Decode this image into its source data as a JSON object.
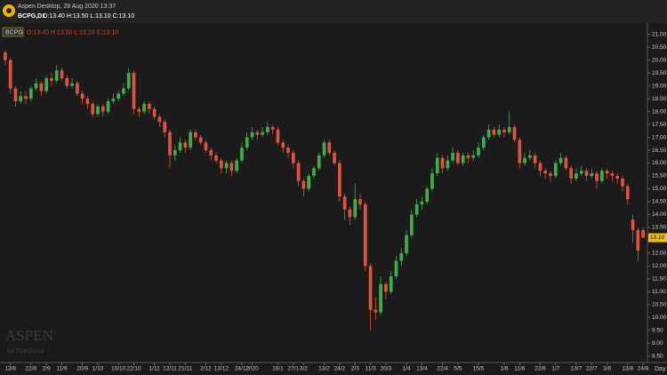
{
  "window": {
    "title": "Aspen Desktop, 28 Aug 2020 13:37",
    "symbol": "BCPG,D1",
    "ohlc_text": "O:13.40 H:13.50 L:13.10 C:13.10"
  },
  "chart_data": {
    "type": "candlestick",
    "symbol": "BCPG",
    "watermark": "ASPEN",
    "watermark_sub": "by ThaiQuest",
    "x_axis_label": "Day",
    "up_color": "#3fae49",
    "down_color": "#e0523c",
    "grid": false,
    "categories": [
      null,
      "13/8",
      null,
      null,
      null,
      "22/8",
      null,
      null,
      "2/9",
      null,
      null,
      "11/9",
      null,
      null,
      null,
      "20/9",
      null,
      null,
      "1/10",
      null,
      null,
      null,
      "10/10",
      null,
      null,
      "22/10",
      null,
      null,
      null,
      "1/11",
      null,
      null,
      "12/11",
      null,
      null,
      "21/11",
      null,
      null,
      null,
      "2/12",
      null,
      null,
      "13/12",
      null,
      null,
      null,
      "24/12",
      null,
      "2020",
      null,
      null,
      null,
      null,
      "16/1",
      null,
      null,
      "27/1",
      null,
      "3/2",
      null,
      null,
      null,
      "13/2",
      null,
      null,
      "24/2",
      null,
      null,
      "2/3",
      null,
      null,
      "11/3",
      null,
      null,
      "20/3",
      null,
      null,
      null,
      "1/4",
      null,
      null,
      "13/4",
      null,
      null,
      null,
      "22/4",
      null,
      null,
      "5/5",
      null,
      null,
      null,
      "15/5",
      null,
      null,
      null,
      null,
      "1/6",
      null,
      null,
      "11/6",
      null,
      null,
      null,
      "22/6",
      null,
      null,
      "1/7",
      null,
      null,
      null,
      "13/7",
      null,
      null,
      "22/7",
      null,
      null,
      "3/8",
      null,
      null,
      null,
      "13/8",
      null,
      null,
      "24/8"
    ],
    "open": [
      20.3,
      20.0,
      18.9,
      18.4,
      18.6,
      18.5,
      18.9,
      19.1,
      18.8,
      19.3,
      19.2,
      19.6,
      19.3,
      19.0,
      19.1,
      18.7,
      18.5,
      18.3,
      17.9,
      18.2,
      18.0,
      18.4,
      18.5,
      18.7,
      18.9,
      19.5,
      18.1,
      18.0,
      18.3,
      18.1,
      17.8,
      17.6,
      17.2,
      16.3,
      16.5,
      16.8,
      16.6,
      17.2,
      17.0,
      16.8,
      16.5,
      16.3,
      16.1,
      15.8,
      16.0,
      15.7,
      16.1,
      16.6,
      17.0,
      17.2,
      17.1,
      17.2,
      17.4,
      17.3,
      16.8,
      16.6,
      16.4,
      16.0,
      15.3,
      15.0,
      15.5,
      15.8,
      16.3,
      16.8,
      16.4,
      16.0,
      14.7,
      14.2,
      13.9,
      14.6,
      14.4,
      12.0,
      10.3,
      10.2,
      11.3,
      11.0,
      11.6,
      12.2,
      12.5,
      13.2,
      14.0,
      14.4,
      14.5,
      15.0,
      15.6,
      16.2,
      15.8,
      16.1,
      16.4,
      16.0,
      16.3,
      16.2,
      16.3,
      16.6,
      17.0,
      17.3,
      17.1,
      17.3,
      17.2,
      17.4,
      16.9,
      16.0,
      16.2,
      16.3,
      16.0,
      15.7,
      15.6,
      15.5,
      16.0,
      16.2,
      15.8,
      15.4,
      15.6,
      15.7,
      15.5,
      15.6,
      15.3,
      15.7,
      15.6,
      15.5,
      15.4,
      15.1,
      13.8,
      13.4,
      13.4
    ],
    "high": [
      20.4,
      20.1,
      19.0,
      18.8,
      18.8,
      19.0,
      19.3,
      19.2,
      19.4,
      19.5,
      19.8,
      19.7,
      19.4,
      19.3,
      19.2,
      18.8,
      18.6,
      18.4,
      18.3,
      18.3,
      18.5,
      18.7,
      18.8,
      19.1,
      19.7,
      19.6,
      18.2,
      18.4,
      18.4,
      18.2,
      17.9,
      17.7,
      17.3,
      16.7,
      17.0,
      16.9,
      17.3,
      17.3,
      17.1,
      16.9,
      16.6,
      16.4,
      16.2,
      16.1,
      16.1,
      16.2,
      16.8,
      17.2,
      17.4,
      17.3,
      17.4,
      17.6,
      17.5,
      17.4,
      16.9,
      16.7,
      16.5,
      16.1,
      15.4,
      15.6,
      15.9,
      16.4,
      16.9,
      16.9,
      16.5,
      16.1,
      14.8,
      14.3,
      15.2,
      14.8,
      14.5,
      12.1,
      10.8,
      11.6,
      11.4,
      11.8,
      12.4,
      12.7,
      13.4,
      14.2,
      14.6,
      14.7,
      15.1,
      15.8,
      16.4,
      16.3,
      16.3,
      16.6,
      16.5,
      16.4,
      16.4,
      16.5,
      16.8,
      17.1,
      17.5,
      17.4,
      17.5,
      17.4,
      18.0,
      17.5,
      17.0,
      16.4,
      16.5,
      16.4,
      16.1,
      15.8,
      15.7,
      16.1,
      16.4,
      16.3,
      15.9,
      15.8,
      15.9,
      15.8,
      15.8,
      15.7,
      15.8,
      15.8,
      15.7,
      15.6,
      15.5,
      15.2,
      14.0,
      13.5,
      13.5
    ],
    "low": [
      19.8,
      18.7,
      18.2,
      18.3,
      18.3,
      18.4,
      18.8,
      18.6,
      18.7,
      19.0,
      19.1,
      19.2,
      18.9,
      18.9,
      18.6,
      18.3,
      18.1,
      17.8,
      17.8,
      17.8,
      17.9,
      18.3,
      18.4,
      18.6,
      18.8,
      17.9,
      17.8,
      17.9,
      17.9,
      17.7,
      17.4,
      17.0,
      15.8,
      16.1,
      16.4,
      16.4,
      16.5,
      16.9,
      16.7,
      16.4,
      16.1,
      16.0,
      15.6,
      15.6,
      15.5,
      15.6,
      16.0,
      16.5,
      16.9,
      16.9,
      17.0,
      17.1,
      17.1,
      16.7,
      16.4,
      16.2,
      15.8,
      15.1,
      14.7,
      14.9,
      15.4,
      15.7,
      16.2,
      16.3,
      15.9,
      14.5,
      13.8,
      13.6,
      13.8,
      14.2,
      11.8,
      9.5,
      9.9,
      10.1,
      10.7,
      10.9,
      11.5,
      12.0,
      12.4,
      13.1,
      13.9,
      14.2,
      14.4,
      14.9,
      15.5,
      15.6,
      15.7,
      16.0,
      15.9,
      15.9,
      16.0,
      16.1,
      16.2,
      16.5,
      16.9,
      17.0,
      17.0,
      17.0,
      17.1,
      16.8,
      15.8,
      15.9,
      16.1,
      15.8,
      15.5,
      15.4,
      15.3,
      15.4,
      15.9,
      15.7,
      15.2,
      15.3,
      15.5,
      15.3,
      15.4,
      15.0,
      15.2,
      15.4,
      15.3,
      15.2,
      14.9,
      14.4,
      12.9,
      12.2,
      13.1
    ],
    "close": [
      20.0,
      18.9,
      18.4,
      18.6,
      18.5,
      18.9,
      19.1,
      18.8,
      19.3,
      19.2,
      19.6,
      19.3,
      19.0,
      19.1,
      18.7,
      18.5,
      18.3,
      17.9,
      18.2,
      18.0,
      18.4,
      18.5,
      18.7,
      18.9,
      19.5,
      18.1,
      18.0,
      18.3,
      18.1,
      17.8,
      17.6,
      17.2,
      16.3,
      16.5,
      16.8,
      16.6,
      17.2,
      17.0,
      16.8,
      16.5,
      16.3,
      16.1,
      15.8,
      16.0,
      15.7,
      16.1,
      16.6,
      17.0,
      17.2,
      17.1,
      17.2,
      17.4,
      17.3,
      16.8,
      16.6,
      16.4,
      16.0,
      15.3,
      15.0,
      15.5,
      15.8,
      16.3,
      16.8,
      16.4,
      16.0,
      14.7,
      14.2,
      13.9,
      14.6,
      14.4,
      12.0,
      10.3,
      10.2,
      11.3,
      11.0,
      11.6,
      12.2,
      12.5,
      13.2,
      14.0,
      14.4,
      14.5,
      15.0,
      15.6,
      16.2,
      15.8,
      16.1,
      16.4,
      16.0,
      16.3,
      16.2,
      16.3,
      16.6,
      17.0,
      17.3,
      17.1,
      17.3,
      17.2,
      17.4,
      16.9,
      16.0,
      16.2,
      16.3,
      16.0,
      15.7,
      15.6,
      15.5,
      16.0,
      16.2,
      15.8,
      15.4,
      15.6,
      15.7,
      15.5,
      15.6,
      15.3,
      15.7,
      15.6,
      15.5,
      15.4,
      15.1,
      14.6,
      13.4,
      12.6,
      13.1
    ],
    "last_price": 13.1,
    "last_price_label": "13.10",
    "last_price_color": "#f2c200",
    "ylim": [
      8.25,
      21.3
    ],
    "yticks": [
      {
        "value": 8.5,
        "label": "8.50"
      },
      {
        "value": 9,
        "label": "9.00"
      },
      {
        "value": 9.5,
        "label": "9.50"
      },
      {
        "value": 10,
        "label": "10.00"
      },
      {
        "value": 10.5,
        "label": "10.50"
      },
      {
        "value": 11,
        "label": "11.00"
      },
      {
        "value": 11.5,
        "label": "11.50"
      },
      {
        "value": 12,
        "label": "12.00"
      },
      {
        "value": 12.5,
        "label": "12.50"
      },
      {
        "value": 13,
        "label": "13.00"
      },
      {
        "value": 13.5,
        "label": "13.50"
      },
      {
        "value": 14,
        "label": "14.00"
      },
      {
        "value": 14.5,
        "label": "14.50"
      },
      {
        "value": 15,
        "label": "15.00"
      },
      {
        "value": 15.5,
        "label": "15.50"
      },
      {
        "value": 16,
        "label": "16.00"
      },
      {
        "value": 16.5,
        "label": "16.50"
      },
      {
        "value": 17,
        "label": "17.00"
      },
      {
        "value": 17.5,
        "label": "17.50"
      },
      {
        "value": 18,
        "label": "18.00"
      },
      {
        "value": 18.5,
        "label": "18.50"
      },
      {
        "value": 19,
        "label": "19.00"
      },
      {
        "value": 19.5,
        "label": "19.50"
      },
      {
        "value": 20,
        "label": "20.00"
      },
      {
        "value": 20.5,
        "label": "20.50"
      },
      {
        "value": 21,
        "label": "21.00"
      }
    ]
  }
}
